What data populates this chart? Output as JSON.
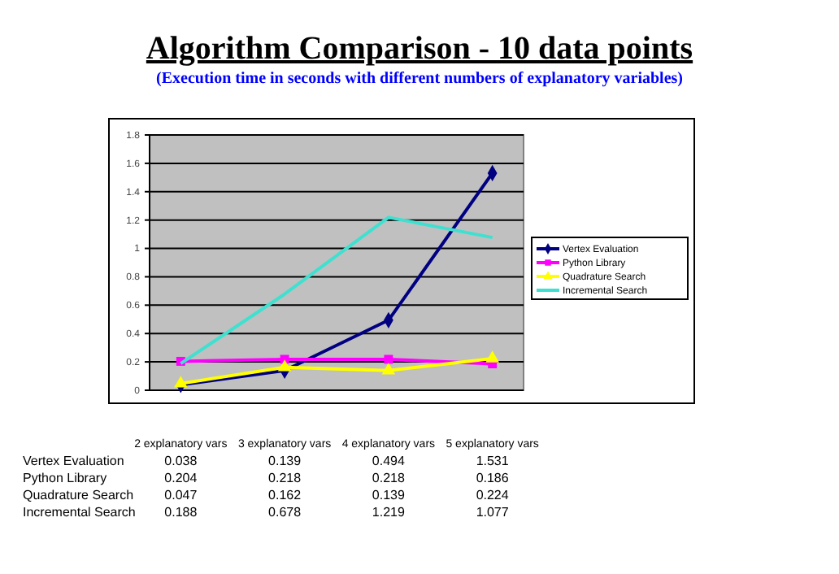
{
  "chart_data": {
    "type": "line",
    "title": "Algorithm Comparison - 10 data points",
    "subtitle": "(Execution time in seconds with different numbers of explanatory variables)",
    "categories": [
      "2 explanatory vars",
      "3 explanatory vars",
      "4 explanatory vars",
      "5 explanatory vars"
    ],
    "series": [
      {
        "name": "Vertex Evaluation",
        "color": "#000080",
        "marker": "diamond",
        "values": [
          0.038,
          0.139,
          0.494,
          1.531
        ]
      },
      {
        "name": "Python Library",
        "color": "#ff00ff",
        "marker": "square",
        "values": [
          0.204,
          0.218,
          0.218,
          0.186
        ]
      },
      {
        "name": "Quadrature Search",
        "color": "#ffff00",
        "marker": "triangle",
        "values": [
          0.047,
          0.162,
          0.139,
          0.224
        ]
      },
      {
        "name": "Incremental Search",
        "color": "#40e0d0",
        "marker": "none",
        "values": [
          0.188,
          0.678,
          1.219,
          1.077
        ]
      }
    ],
    "ylim": [
      0,
      1.8
    ],
    "yticks": [
      0,
      0.2,
      0.4,
      0.6,
      0.8,
      1,
      1.2,
      1.4,
      1.6,
      1.8
    ],
    "grid": "y",
    "legend": "right",
    "data_labels": true,
    "tick_labels": "y"
  }
}
